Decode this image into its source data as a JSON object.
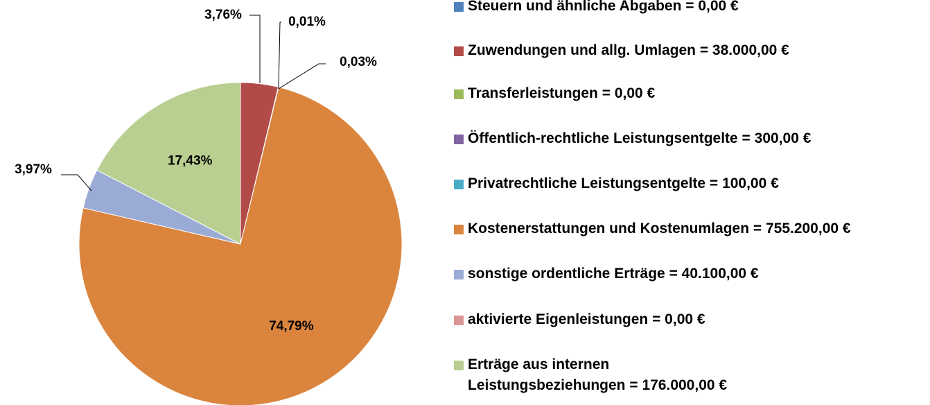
{
  "chart_data": {
    "type": "pie",
    "categories": [
      "Steuern und ähnliche Abgaben = 0,00 €",
      "Zuwendungen und allg. Umlagen = 38.000,00 €",
      "Transferleistungen = 0,00 €",
      "Öffentlich-rechtliche Leistungsentgelte = 300,00 €",
      "Privatrechtliche Leistungsentgelte = 100,00 €",
      "Kostenerstattungen und Kostenumlagen = 755.200,00 €",
      "sonstige ordentliche Erträge = 40.100,00 €",
      "aktivierte Eigenleistungen = 0,00 €",
      "Erträge aus internen Leistungsbeziehungen = 176.000,00 €"
    ],
    "values": [
      0,
      3.76,
      0,
      0.03,
      0.01,
      74.79,
      3.97,
      0,
      17.43
    ],
    "value_labels": [
      null,
      "3,76%",
      null,
      "0,03%",
      "0,01%",
      "74,79%",
      "3,97%",
      null,
      "17,43%"
    ],
    "colors": [
      "#4f81bd",
      "#b24a47",
      "#9bbb59",
      "#8064a2",
      "#4bacc6",
      "#db843d",
      "#9aabd6",
      "#d99594",
      "#b9cf91"
    ]
  }
}
